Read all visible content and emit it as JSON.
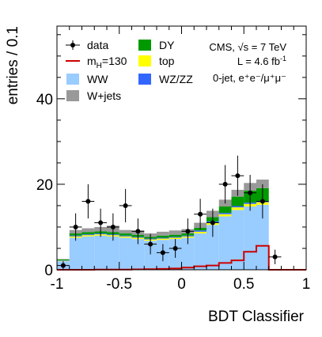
{
  "chart_data": {
    "type": "bar",
    "stacked": true,
    "xlabel": "BDT Classifier",
    "ylabel": "entries / 0.1",
    "xlim": [
      -1,
      1
    ],
    "ylim": [
      0,
      57
    ],
    "x_ticks": [
      "-1",
      "-0.5",
      "0",
      "0.5",
      "1"
    ],
    "y_ticks": [
      "0",
      "20",
      "40"
    ],
    "bins": [
      -0.95,
      -0.85,
      -0.75,
      -0.65,
      -0.55,
      -0.45,
      -0.35,
      -0.25,
      -0.15,
      -0.05,
      0.05,
      0.15,
      0.25,
      0.35,
      0.45,
      0.55,
      0.65,
      0.75,
      0.85,
      0.95
    ],
    "bin_width": 0.1,
    "series": [
      {
        "name": "WW",
        "color": "#99ccff",
        "values": [
          2,
          7.5,
          7.8,
          8.0,
          7.8,
          7.5,
          7.2,
          6.8,
          7.0,
          7.2,
          7.5,
          8.5,
          10.5,
          12.5,
          14.0,
          14.8,
          15.2,
          0,
          0,
          0
        ]
      },
      {
        "name": "top",
        "color": "#ffff00",
        "values": [
          0.1,
          0.3,
          0.3,
          0.3,
          0.3,
          0.3,
          0.3,
          0.3,
          0.3,
          0.3,
          0.3,
          0.4,
          0.5,
          0.5,
          0.6,
          0.6,
          0.6,
          0,
          0,
          0
        ]
      },
      {
        "name": "WZ/ZZ",
        "color": "#3366ff",
        "values": [
          0.1,
          0.2,
          0.2,
          0.2,
          0.2,
          0.2,
          0.2,
          0.2,
          0.2,
          0.2,
          0.2,
          0.3,
          0.3,
          0.3,
          0.3,
          0.3,
          0.3,
          0,
          0,
          0
        ]
      },
      {
        "name": "DY",
        "color": "#009900",
        "values": [
          0.2,
          0.5,
          0.5,
          0.5,
          0.5,
          0.5,
          0.5,
          0.4,
          0.5,
          0.5,
          0.5,
          0.6,
          1.0,
          1.5,
          2.2,
          2.8,
          3.0,
          0,
          0,
          0
        ]
      },
      {
        "name": "W+jets",
        "color": "#999999",
        "values": [
          0.1,
          0.8,
          0.9,
          1.0,
          1.5,
          0.8,
          1.0,
          0.8,
          0.9,
          1.0,
          1.0,
          1.2,
          1.5,
          1.6,
          1.6,
          1.8,
          2.0,
          0,
          0,
          0
        ]
      }
    ],
    "signal": {
      "name": "m_H=130",
      "color": "#cc0000",
      "values": [
        0,
        0,
        0,
        0.05,
        0.05,
        0.05,
        0.1,
        0.15,
        0.2,
        0.3,
        0.5,
        0.8,
        1.0,
        1.6,
        2.2,
        4.2,
        5.6,
        0,
        0,
        0
      ]
    },
    "data": {
      "name": "data",
      "x": [
        -0.95,
        -0.85,
        -0.75,
        -0.65,
        -0.55,
        -0.45,
        -0.35,
        -0.25,
        -0.15,
        -0.05,
        0.05,
        0.15,
        0.25,
        0.35,
        0.45,
        0.55,
        0.65,
        0.75
      ],
      "y": [
        1,
        10,
        16,
        11,
        10,
        15,
        9,
        6,
        4,
        5,
        9,
        13,
        11,
        20,
        22,
        18,
        16,
        3
      ],
      "err": [
        1.0,
        3.2,
        4.0,
        3.3,
        3.2,
        3.9,
        3.0,
        2.4,
        2.0,
        2.2,
        3.0,
        3.6,
        3.3,
        4.5,
        4.7,
        4.2,
        4.0,
        1.7
      ]
    },
    "legend_entries": [
      {
        "label": "data",
        "kind": "marker"
      },
      {
        "label_main": "m",
        "label_sub": "H",
        "label_tail": "=130",
        "kind": "line",
        "color": "#cc0000"
      },
      {
        "label": "WW",
        "kind": "box",
        "color": "#99ccff"
      },
      {
        "label": "W+jets",
        "kind": "box",
        "color": "#999999"
      },
      {
        "label": "DY",
        "kind": "box",
        "color": "#009900"
      },
      {
        "label": "top",
        "kind": "box",
        "color": "#ffff00"
      },
      {
        "label": "WZ/ZZ",
        "kind": "box",
        "color": "#3366ff"
      }
    ],
    "annotations": {
      "line1": "CMS, √s = 7 TeV",
      "line2_main": "L = 4.6 fb",
      "line2_sup": "-1",
      "line3": "0-jet, e⁺e⁻/μ⁺μ⁻"
    }
  }
}
